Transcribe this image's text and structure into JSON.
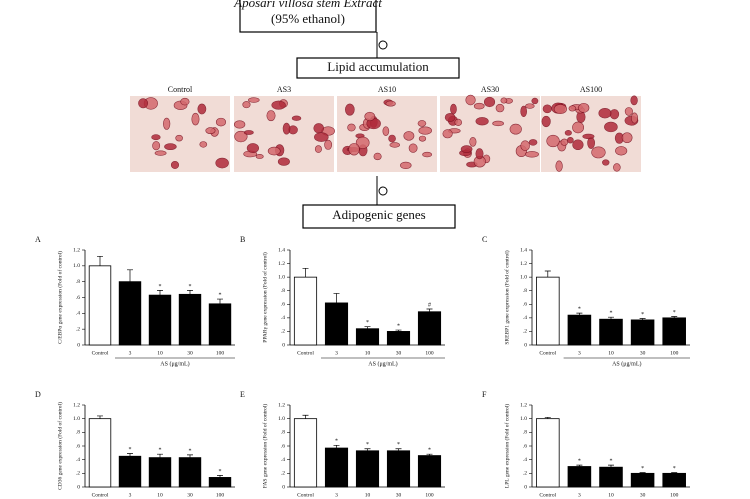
{
  "flow": {
    "extract": "Aposari villosa stem Extract",
    "solvent": "(95% ethanol)",
    "lipid": "Lipid accumulation",
    "genes": "Adipogenic genes"
  },
  "images": [
    "Control",
    "AS3",
    "AS10",
    "AS30",
    "AS100"
  ],
  "chart_data": [
    {
      "type": "bar",
      "label": "A",
      "ylabel": "C/EBPα gene expression (Fold of control)",
      "xlabel": "AS (μg/mL)",
      "categories": [
        "Control",
        "3",
        "10",
        "30",
        "100"
      ],
      "values": [
        1.0,
        0.8,
        0.63,
        0.64,
        0.52
      ],
      "errors": [
        0.12,
        0.15,
        0.06,
        0.05,
        0.06
      ],
      "significance": [
        null,
        null,
        "*",
        "*",
        "*"
      ],
      "colors": [
        "#ffffff",
        "#000000",
        "#000000",
        "#000000",
        "#000000"
      ],
      "ylim": [
        0,
        1.2
      ],
      "yticks": [
        0,
        {
          "value": 0.2,
          "label": ".2"
        },
        {
          "value": 0.4,
          "label": ".4"
        },
        {
          "value": 0.6,
          "label": ".6"
        },
        {
          "value": 0.8,
          "label": ".8"
        },
        {
          "value": 1.0,
          "label": "1.0"
        },
        1.2
      ]
    },
    {
      "type": "bar",
      "label": "B",
      "ylabel": "PPARγ gene expression (Fold of control)",
      "xlabel": "AS (μg/mL)",
      "categories": [
        "Control",
        "3",
        "10",
        "30",
        "100"
      ],
      "values": [
        1.0,
        0.62,
        0.24,
        0.2,
        0.49
      ],
      "errors": [
        0.13,
        0.14,
        0.03,
        0.02,
        0.04
      ],
      "significance": [
        null,
        null,
        "*",
        "*",
        "#"
      ],
      "colors": [
        "#ffffff",
        "#000000",
        "#000000",
        "#000000",
        "#000000"
      ],
      "ylim": [
        0,
        1.4
      ],
      "yticks": [
        0,
        {
          "value": 0.2,
          "label": ".2"
        },
        {
          "value": 0.4,
          "label": ".4"
        },
        {
          "value": 0.6,
          "label": ".6"
        },
        {
          "value": 0.8,
          "label": ".8"
        },
        {
          "value": 1.0,
          "label": "1.0"
        },
        1.2,
        1.4
      ]
    },
    {
      "type": "bar",
      "label": "C",
      "ylabel": "SREBP1 gene expression (Fold of control)",
      "xlabel": "AS (μg/mL)",
      "categories": [
        "Control",
        "3",
        "10",
        "30",
        "100"
      ],
      "values": [
        1.0,
        0.44,
        0.38,
        0.37,
        0.4
      ],
      "errors": [
        0.09,
        0.03,
        0.03,
        0.02,
        0.02
      ],
      "significance": [
        null,
        "*",
        "*",
        "*",
        "*"
      ],
      "colors": [
        "#ffffff",
        "#000000",
        "#000000",
        "#000000",
        "#000000"
      ],
      "ylim": [
        0,
        1.4
      ],
      "yticks": [
        0,
        {
          "value": 0.2,
          "label": ".2"
        },
        {
          "value": 0.4,
          "label": ".4"
        },
        {
          "value": 0.6,
          "label": ".6"
        },
        {
          "value": 0.8,
          "label": ".8"
        },
        {
          "value": 1.0,
          "label": "1.0"
        },
        1.2,
        1.4
      ]
    },
    {
      "type": "bar",
      "label": "D",
      "ylabel": "CD36 gene expression (Fold of control)",
      "categories": [
        "Control",
        "3",
        "10",
        "30",
        "100"
      ],
      "values": [
        1.0,
        0.45,
        0.43,
        0.43,
        0.14
      ],
      "errors": [
        0.04,
        0.04,
        0.05,
        0.04,
        0.03
      ],
      "significance": [
        null,
        "*",
        "*",
        "*",
        "*"
      ],
      "colors": [
        "#ffffff",
        "#000000",
        "#000000",
        "#000000",
        "#000000"
      ],
      "ylim": [
        0,
        1.2
      ],
      "yticks": [
        0,
        {
          "value": 0.2,
          "label": ".2"
        },
        {
          "value": 0.4,
          "label": ".4"
        },
        {
          "value": 0.6,
          "label": ".6"
        },
        {
          "value": 0.8,
          "label": ".8"
        },
        {
          "value": 1.0,
          "label": "1.0"
        },
        1.2
      ]
    },
    {
      "type": "bar",
      "label": "E",
      "ylabel": "FAS gene expression (Fold of control)",
      "categories": [
        "Control",
        "3",
        "10",
        "30",
        "100"
      ],
      "values": [
        1.0,
        0.57,
        0.53,
        0.53,
        0.46
      ],
      "errors": [
        0.05,
        0.04,
        0.03,
        0.03,
        0.02
      ],
      "significance": [
        null,
        "*",
        "*",
        "*",
        "*"
      ],
      "colors": [
        "#ffffff",
        "#000000",
        "#000000",
        "#000000",
        "#000000"
      ],
      "ylim": [
        0,
        1.2
      ],
      "yticks": [
        0,
        {
          "value": 0.2,
          "label": ".2"
        },
        {
          "value": 0.4,
          "label": ".4"
        },
        {
          "value": 0.6,
          "label": ".6"
        },
        {
          "value": 0.8,
          "label": ".8"
        },
        {
          "value": 1.0,
          "label": "1.0"
        },
        1.2
      ]
    },
    {
      "type": "bar",
      "label": "F",
      "ylabel": "LPL gene expression (Fold of control)",
      "categories": [
        "Control",
        "3",
        "10",
        "30",
        "100"
      ],
      "values": [
        1.0,
        0.3,
        0.29,
        0.2,
        0.2
      ],
      "errors": [
        0.02,
        0.02,
        0.03,
        0.01,
        0.01
      ],
      "significance": [
        null,
        "*",
        "*",
        "*",
        "*"
      ],
      "colors": [
        "#ffffff",
        "#000000",
        "#000000",
        "#000000",
        "#000000"
      ],
      "ylim": [
        0,
        1.2
      ],
      "yticks": [
        0,
        {
          "value": 0.2,
          "label": ".2"
        },
        {
          "value": 0.4,
          "label": ".4"
        },
        {
          "value": 0.6,
          "label": ".6"
        },
        {
          "value": 0.8,
          "label": ".8"
        },
        {
          "value": 1.0,
          "label": "1.0"
        },
        1.2
      ]
    }
  ]
}
